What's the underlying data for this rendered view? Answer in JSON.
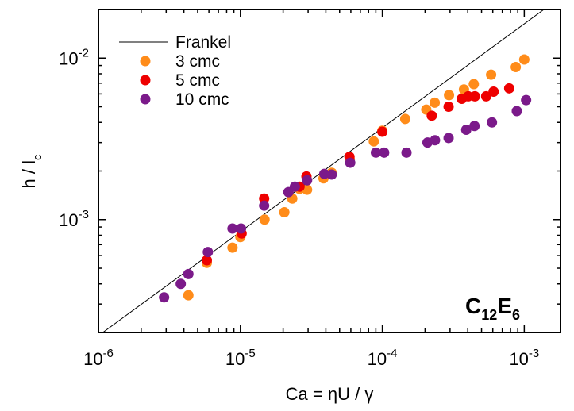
{
  "chart_data": {
    "type": "scatter",
    "xscale": "log",
    "yscale": "log",
    "xlim": [
      1e-06,
      0.0018
    ],
    "ylim": [
      0.0002,
      0.02
    ],
    "xlabel": "Ca = ηU / γ",
    "ylabel": "h / l",
    "ylabel_subscript": "c",
    "x_tick_labels": [
      {
        "base": "10",
        "exp": "-6"
      },
      {
        "base": "10",
        "exp": "-5"
      },
      {
        "base": "10",
        "exp": "-4"
      },
      {
        "base": "10",
        "exp": "-3"
      }
    ],
    "y_tick_labels": [
      {
        "base": "10",
        "exp": "-3"
      },
      {
        "base": "10",
        "exp": "-2"
      }
    ],
    "grid": false,
    "legend_position": "top-left",
    "annotation": {
      "main": "C",
      "sub1": "12",
      "mid": "E",
      "sub2": "6"
    },
    "lines": [
      {
        "name": "Frankel",
        "color": "#000000",
        "x": [
          1e-06,
          0.0018
        ],
        "y": [
          0.000191,
          0.0238
        ]
      }
    ],
    "series": [
      {
        "name": "3 cmc",
        "color": "#ff8c1a",
        "x": [
          4.3e-06,
          5.8e-06,
          8.8e-06,
          1e-05,
          1.48e-05,
          2.04e-05,
          2.32e-05,
          2.61e-05,
          2.95e-05,
          3.85e-05,
          4.4e-05,
          5.9e-05,
          8.71e-05,
          0.0001,
          0.000145,
          0.000204,
          0.000234,
          0.000295,
          0.000376,
          0.000441,
          0.000584,
          0.000871,
          0.001
        ],
        "y": [
          0.00034,
          0.00054,
          0.00067,
          0.00078,
          0.001,
          0.00111,
          0.00135,
          0.00155,
          0.00153,
          0.0018,
          0.00195,
          0.00235,
          0.00305,
          0.00355,
          0.0042,
          0.0048,
          0.0053,
          0.0059,
          0.0064,
          0.0069,
          0.0079,
          0.0088,
          0.0098
        ]
      },
      {
        "name": "5 cmc",
        "color": "#ee0000",
        "x": [
          5.8e-06,
          1.02e-05,
          1.47e-05,
          2.61e-05,
          2.92e-05,
          5.87e-05,
          0.0001,
          0.000223,
          0.000293,
          0.000363,
          0.000403,
          0.000449,
          0.000539,
          0.000608,
          0.000783
        ],
        "y": [
          0.00056,
          0.00082,
          0.00135,
          0.0016,
          0.00185,
          0.00245,
          0.0035,
          0.0044,
          0.005,
          0.0056,
          0.0058,
          0.0058,
          0.0058,
          0.0062,
          0.0065
        ]
      },
      {
        "name": "10 cmc",
        "color": "#7b1a8a",
        "x": [
          2.9e-06,
          3.8e-06,
          4.3e-06,
          5.9e-06,
          8.8e-06,
          1.01e-05,
          1.47e-05,
          2.18e-05,
          2.42e-05,
          2.95e-05,
          3.9e-05,
          4.4e-05,
          5.94e-05,
          9.01e-05,
          0.000103,
          0.000148,
          0.000208,
          0.000235,
          0.000293,
          0.00039,
          0.000446,
          0.000592,
          0.000886,
          0.00103
        ],
        "y": [
          0.00033,
          0.0004,
          0.00046,
          0.00063,
          0.00088,
          0.00088,
          0.00122,
          0.00148,
          0.0016,
          0.00175,
          0.00192,
          0.0019,
          0.00225,
          0.0026,
          0.0026,
          0.0026,
          0.003,
          0.0031,
          0.0032,
          0.0036,
          0.0038,
          0.004,
          0.0047,
          0.0055
        ]
      }
    ]
  }
}
